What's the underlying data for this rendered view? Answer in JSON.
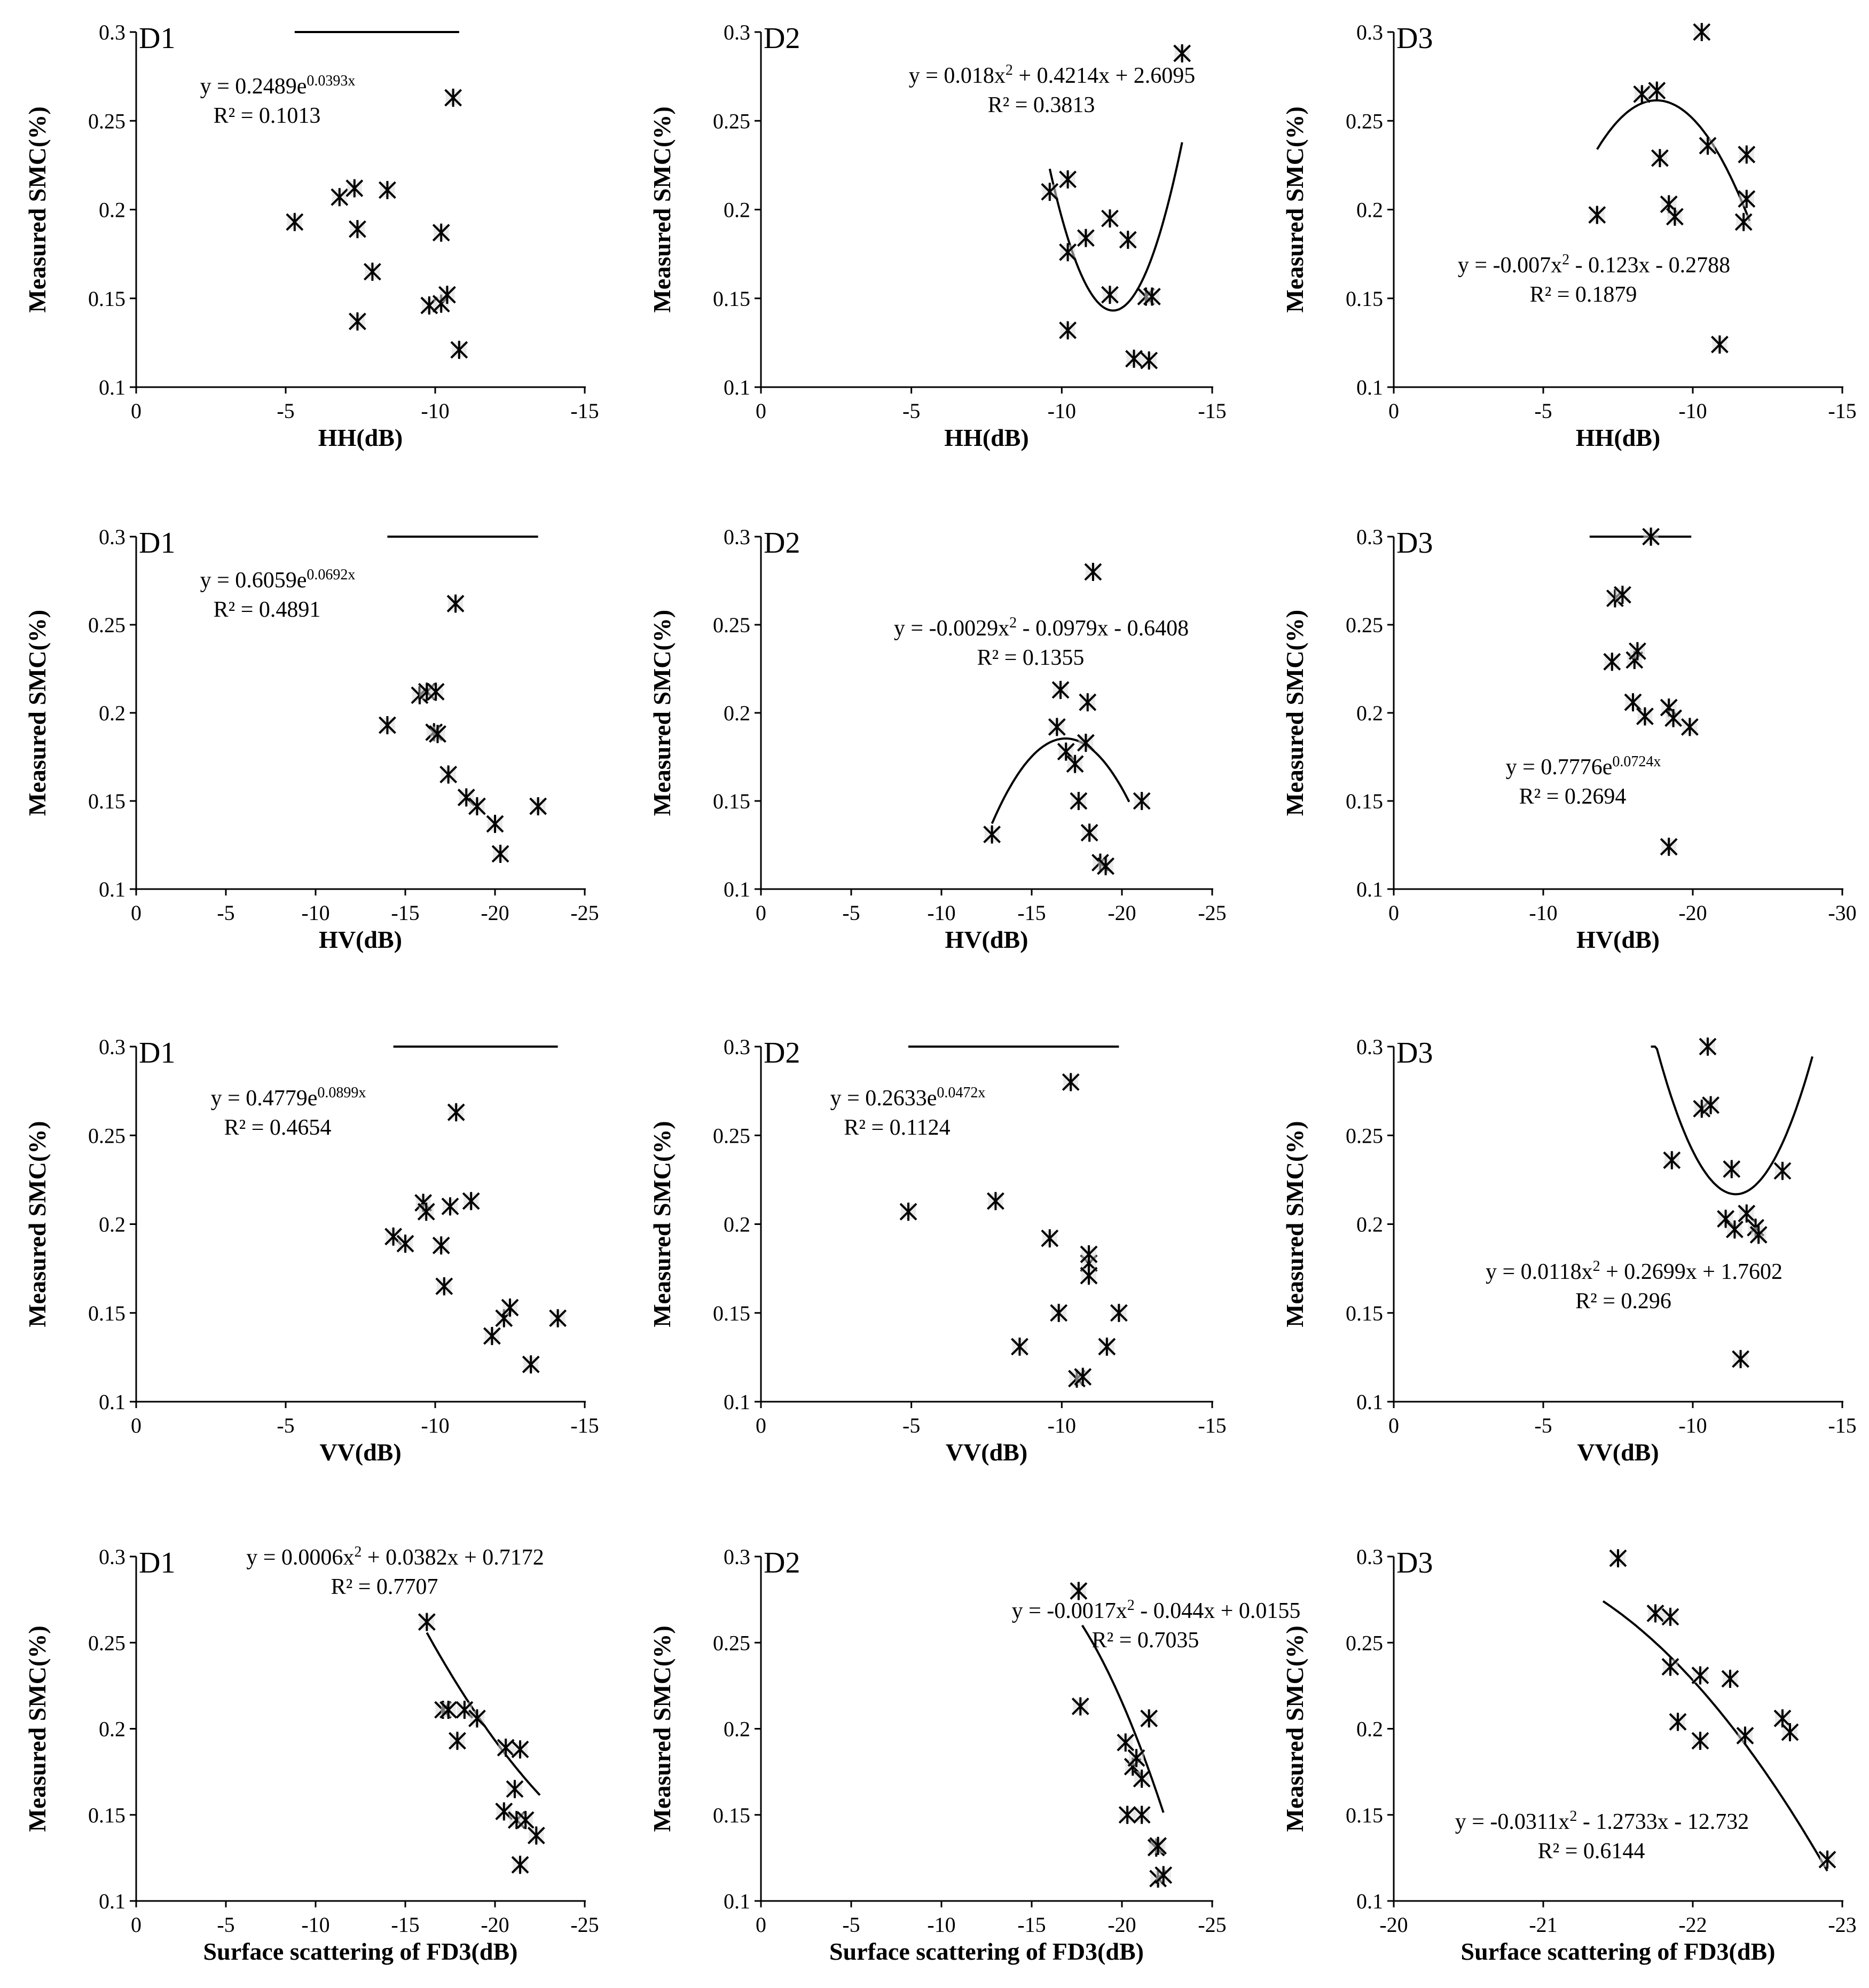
{
  "chart_data": [
    {
      "type": "scatter",
      "title": "D1",
      "xlabel": "HH(dB)",
      "ylabel": "Measured SMC(%)",
      "xlim": [
        0,
        -15
      ],
      "ylim": [
        0.1,
        0.3
      ],
      "xticks": [
        "0",
        "-5",
        "-10",
        "-15"
      ],
      "yticks": [
        "0.1",
        "0.15",
        "0.2",
        "0.25",
        "0.3"
      ],
      "equation": {
        "base": "y = 0.2489e",
        "sup": "0.0393x"
      },
      "r2": "R² = 0.1013",
      "fit": {
        "kind": "exp",
        "a": 0.2489,
        "b": 0.0393,
        "xrange": [
          -5.3,
          -10.8
        ]
      },
      "points": [
        [
          -5.3,
          0.193
        ],
        [
          -6.8,
          0.207
        ],
        [
          -7.3,
          0.212
        ],
        [
          -7.4,
          0.189
        ],
        [
          -7.4,
          0.137
        ],
        [
          -7.9,
          0.165
        ],
        [
          -8.4,
          0.211
        ],
        [
          -9.8,
          0.146
        ],
        [
          -10.2,
          0.187
        ],
        [
          -10.2,
          0.147
        ],
        [
          -10.4,
          0.152
        ],
        [
          -10.6,
          0.263
        ],
        [
          -10.8,
          0.121
        ]
      ]
    },
    {
      "type": "scatter",
      "title": "D2",
      "xlabel": "HH(dB)",
      "ylabel": "Measured SMC(%)",
      "xlim": [
        0,
        -15
      ],
      "ylim": [
        0.1,
        0.3
      ],
      "xticks": [
        "0",
        "-5",
        "-10",
        "-15"
      ],
      "yticks": [
        "0.1",
        "0.15",
        "0.2",
        "0.25",
        "0.3"
      ],
      "equation": {
        "base": "y = 0.018x",
        "sup": "2",
        "rest": " + 0.4214x + 2.6095"
      },
      "r2": "R² = 0.3813",
      "fit": {
        "kind": "poly",
        "c": [
          2.6095,
          0.4214,
          0.018
        ],
        "xrange": [
          -9.6,
          -14.0
        ]
      },
      "points": [
        [
          -9.6,
          0.21
        ],
        [
          -10.2,
          0.217
        ],
        [
          -10.2,
          0.176
        ],
        [
          -10.2,
          0.132
        ],
        [
          -10.8,
          0.184
        ],
        [
          -11.6,
          0.195
        ],
        [
          -11.6,
          0.152
        ],
        [
          -12.2,
          0.183
        ],
        [
          -12.4,
          0.116
        ],
        [
          -12.8,
          0.151
        ],
        [
          -12.9,
          0.115
        ],
        [
          -13.0,
          0.151
        ],
        [
          -14.0,
          0.288
        ]
      ]
    },
    {
      "type": "scatter",
      "title": "D3",
      "xlabel": "HH(dB)",
      "ylabel": "Measured SMC(%)",
      "xlim": [
        0,
        -15
      ],
      "ylim": [
        0.1,
        0.3
      ],
      "xticks": [
        "0",
        "-5",
        "-10",
        "-15"
      ],
      "yticks": [
        "0.1",
        "0.15",
        "0.2",
        "0.25",
        "0.3"
      ],
      "equation": {
        "base": "y = -0.007x",
        "sup": "2",
        "rest": " - 0.123x - 0.2788"
      },
      "r2": "R² = 0.1879",
      "fit": {
        "kind": "poly",
        "c": [
          -0.2788,
          -0.123,
          -0.007
        ],
        "xrange": [
          -6.8,
          -11.9
        ]
      },
      "points": [
        [
          -6.8,
          0.197
        ],
        [
          -8.3,
          0.265
        ],
        [
          -8.8,
          0.267
        ],
        [
          -8.9,
          0.229
        ],
        [
          -9.2,
          0.203
        ],
        [
          -9.4,
          0.196
        ],
        [
          -10.3,
          0.3
        ],
        [
          -10.5,
          0.236
        ],
        [
          -10.9,
          0.124
        ],
        [
          -11.7,
          0.193
        ],
        [
          -11.8,
          0.231
        ],
        [
          -11.8,
          0.206
        ]
      ]
    },
    {
      "type": "scatter",
      "title": "D1",
      "xlabel": "HV(dB)",
      "ylabel": "Measured SMC(%)",
      "xlim": [
        0,
        -25
      ],
      "ylim": [
        0.1,
        0.3
      ],
      "xticks": [
        "0",
        "-5",
        "-10",
        "-15",
        "-20",
        "-25"
      ],
      "yticks": [
        "0.1",
        "0.15",
        "0.2",
        "0.25",
        "0.3"
      ],
      "equation": {
        "base": "y = 0.6059e",
        "sup": "0.0692x"
      },
      "r2": "R² = 0.4891",
      "fit": {
        "kind": "exp",
        "a": 0.6059,
        "b": 0.0692,
        "xrange": [
          -14.0,
          -22.4
        ]
      },
      "points": [
        [
          -14.0,
          0.193
        ],
        [
          -15.8,
          0.21
        ],
        [
          -16.2,
          0.212
        ],
        [
          -16.6,
          0.189
        ],
        [
          -16.7,
          0.212
        ],
        [
          -16.8,
          0.188
        ],
        [
          -17.4,
          0.165
        ],
        [
          -17.8,
          0.262
        ],
        [
          -18.4,
          0.152
        ],
        [
          -19.0,
          0.147
        ],
        [
          -20.0,
          0.137
        ],
        [
          -20.3,
          0.12
        ],
        [
          -22.4,
          0.147
        ]
      ]
    },
    {
      "type": "scatter",
      "title": "D2",
      "xlabel": "HV(dB)",
      "ylabel": "Measured SMC(%)",
      "xlim": [
        0,
        -25
      ],
      "ylim": [
        0.1,
        0.3
      ],
      "xticks": [
        "0",
        "-5",
        "-10",
        "-15",
        "-20",
        "-25"
      ],
      "yticks": [
        "0.1",
        "0.15",
        "0.2",
        "0.25",
        "0.3"
      ],
      "equation": {
        "base": "y = -0.0029x",
        "sup": "2",
        "rest": " - 0.0979x - 0.6408"
      },
      "r2": "R² = 0.1355",
      "fit": {
        "kind": "poly",
        "c": [
          -0.6408,
          -0.0979,
          -0.0029
        ],
        "xrange": [
          -12.8,
          -20.4
        ]
      },
      "points": [
        [
          -12.8,
          0.131
        ],
        [
          -16.4,
          0.192
        ],
        [
          -16.6,
          0.213
        ],
        [
          -16.9,
          0.178
        ],
        [
          -17.4,
          0.171
        ],
        [
          -17.6,
          0.15
        ],
        [
          -18.0,
          0.183
        ],
        [
          -18.1,
          0.206
        ],
        [
          -18.2,
          0.132
        ],
        [
          -18.4,
          0.28
        ],
        [
          -18.8,
          0.115
        ],
        [
          -19.1,
          0.113
        ],
        [
          -21.1,
          0.15
        ]
      ]
    },
    {
      "type": "scatter",
      "title": "D3",
      "xlabel": "HV(dB)",
      "ylabel": "Measured SMC(%)",
      "xlim": [
        0,
        -30
      ],
      "ylim": [
        0.1,
        0.3
      ],
      "xticks": [
        "0",
        "-10",
        "-20",
        "-30"
      ],
      "yticks": [
        "0.1",
        "0.15",
        "0.2",
        "0.25",
        "0.3"
      ],
      "equation": {
        "base": "y = 0.7776e",
        "sup": "0.0724x"
      },
      "r2": "R² = 0.2694",
      "fit": {
        "kind": "exp",
        "a": 0.7776,
        "b": 0.0724,
        "xrange": [
          -13.1,
          -19.9
        ]
      },
      "points": [
        [
          -14.6,
          0.229
        ],
        [
          -14.8,
          0.265
        ],
        [
          -15.3,
          0.267
        ],
        [
          -16.0,
          0.206
        ],
        [
          -16.1,
          0.23
        ],
        [
          -16.3,
          0.235
        ],
        [
          -16.8,
          0.198
        ],
        [
          -17.2,
          0.3
        ],
        [
          -18.4,
          0.203
        ],
        [
          -18.4,
          0.124
        ],
        [
          -18.7,
          0.197
        ],
        [
          -19.8,
          0.192
        ]
      ]
    },
    {
      "type": "scatter",
      "title": "D1",
      "xlabel": "VV(dB)",
      "ylabel": "Measured SMC(%)",
      "xlim": [
        0,
        -15
      ],
      "ylim": [
        0.1,
        0.3
      ],
      "xticks": [
        "0",
        "-5",
        "-10",
        "-15"
      ],
      "yticks": [
        "0.1",
        "0.15",
        "0.2",
        "0.25",
        "0.3"
      ],
      "equation": {
        "base": "y = 0.4779e",
        "sup": "0.0899x"
      },
      "r2": "R² = 0.4654",
      "fit": {
        "kind": "exp",
        "a": 0.4779,
        "b": 0.0899,
        "xrange": [
          -8.6,
          -14.1
        ]
      },
      "points": [
        [
          -8.6,
          0.193
        ],
        [
          -9.0,
          0.189
        ],
        [
          -9.6,
          0.212
        ],
        [
          -9.7,
          0.207
        ],
        [
          -10.2,
          0.188
        ],
        [
          -10.3,
          0.165
        ],
        [
          -10.5,
          0.21
        ],
        [
          -10.7,
          0.263
        ],
        [
          -11.2,
          0.213
        ],
        [
          -11.9,
          0.137
        ],
        [
          -12.3,
          0.147
        ],
        [
          -12.5,
          0.153
        ],
        [
          -13.2,
          0.121
        ],
        [
          -14.1,
          0.147
        ]
      ]
    },
    {
      "type": "scatter",
      "title": "D2",
      "xlabel": "VV(dB)",
      "ylabel": "Measured SMC(%)",
      "xlim": [
        0,
        -15
      ],
      "ylim": [
        0.1,
        0.3
      ],
      "xticks": [
        "0",
        "-5",
        "-10",
        "-15"
      ],
      "yticks": [
        "0.1",
        "0.15",
        "0.2",
        "0.25",
        "0.3"
      ],
      "equation": {
        "base": "y = 0.2633e",
        "sup": "0.0472x"
      },
      "r2": "R² = 0.1124",
      "fit": {
        "kind": "exp",
        "a": 0.2633,
        "b": 0.0472,
        "xrange": [
          -4.9,
          -11.9
        ]
      },
      "points": [
        [
          -4.9,
          0.207
        ],
        [
          -7.8,
          0.213
        ],
        [
          -8.6,
          0.131
        ],
        [
          -9.6,
          0.192
        ],
        [
          -9.9,
          0.15
        ],
        [
          -10.3,
          0.28
        ],
        [
          -10.5,
          0.113
        ],
        [
          -10.7,
          0.114
        ],
        [
          -10.9,
          0.178
        ],
        [
          -10.9,
          0.183
        ],
        [
          -10.9,
          0.171
        ],
        [
          -11.5,
          0.131
        ],
        [
          -11.9,
          0.15
        ]
      ]
    },
    {
      "type": "scatter",
      "title": "D3",
      "xlabel": "VV(dB)",
      "ylabel": "Measured SMC(%)",
      "xlim": [
        0,
        -15
      ],
      "ylim": [
        0.1,
        0.3
      ],
      "xticks": [
        "0",
        "-5",
        "-10",
        "-15"
      ],
      "yticks": [
        "0.1",
        "0.15",
        "0.2",
        "0.25",
        "0.3"
      ],
      "equation": {
        "base": "y = 0.0118x",
        "sup": "2",
        "rest": " + 0.2699x + 1.7602"
      },
      "r2": "R² = 0.296",
      "fit": {
        "kind": "poly",
        "c": [
          1.7602,
          0.2699,
          0.0118
        ],
        "xrange": [
          -8.6,
          -14.0
        ]
      },
      "points": [
        [
          -9.3,
          0.236
        ],
        [
          -10.3,
          0.265
        ],
        [
          -10.5,
          0.3
        ],
        [
          -10.6,
          0.267
        ],
        [
          -11.1,
          0.203
        ],
        [
          -11.3,
          0.231
        ],
        [
          -11.4,
          0.197
        ],
        [
          -11.6,
          0.124
        ],
        [
          -11.8,
          0.206
        ],
        [
          -12.1,
          0.198
        ],
        [
          -12.2,
          0.194
        ],
        [
          -13.0,
          0.23
        ]
      ]
    },
    {
      "type": "scatter",
      "title": "D1",
      "xlabel": "Surface scattering of FD3(dB)",
      "ylabel": "Measured SMC(%)",
      "xlim": [
        0,
        -25
      ],
      "ylim": [
        0.1,
        0.3
      ],
      "xticks": [
        "0",
        "-5",
        "-10",
        "-15",
        "-20",
        "-25"
      ],
      "yticks": [
        "0.1",
        "0.15",
        "0.2",
        "0.25",
        "0.3"
      ],
      "equation": {
        "base": "y = 0.0006x",
        "sup": "2",
        "rest": " + 0.0382x + 0.7172"
      },
      "r2": "R² = 0.7707",
      "fit": {
        "kind": "poly",
        "c": [
          0.7172,
          0.0382,
          0.0006
        ],
        "xrange": [
          -16.2,
          -22.5
        ]
      },
      "points": [
        [
          -16.2,
          0.262
        ],
        [
          -17.1,
          0.211
        ],
        [
          -17.4,
          0.211
        ],
        [
          -17.9,
          0.193
        ],
        [
          -18.3,
          0.211
        ],
        [
          -19.0,
          0.206
        ],
        [
          -20.5,
          0.152
        ],
        [
          -20.6,
          0.189
        ],
        [
          -21.1,
          0.165
        ],
        [
          -21.2,
          0.147
        ],
        [
          -21.4,
          0.188
        ],
        [
          -21.4,
          0.121
        ],
        [
          -21.7,
          0.147
        ],
        [
          -22.3,
          0.138
        ]
      ]
    },
    {
      "type": "scatter",
      "title": "D2",
      "xlabel": "Surface scattering of FD3(dB)",
      "ylabel": "Measured SMC(%)",
      "xlim": [
        0,
        -25
      ],
      "ylim": [
        0.1,
        0.3
      ],
      "xticks": [
        "0",
        "-5",
        "-10",
        "-15",
        "-20",
        "-25"
      ],
      "yticks": [
        "0.1",
        "0.15",
        "0.2",
        "0.25",
        "0.3"
      ],
      "equation": {
        "base": "y = -0.0017x",
        "sup": "2",
        "rest": " - 0.044x + 0.0155"
      },
      "r2": "R² = 0.7035",
      "fit": {
        "kind": "poly",
        "c": [
          0.0155,
          -0.044,
          -0.0017
        ],
        "xrange": [
          -17.8,
          -22.3
        ]
      },
      "points": [
        [
          -17.6,
          0.28
        ],
        [
          -17.7,
          0.213
        ],
        [
          -20.2,
          0.192
        ],
        [
          -20.3,
          0.15
        ],
        [
          -20.6,
          0.178
        ],
        [
          -20.8,
          0.183
        ],
        [
          -21.1,
          0.171
        ],
        [
          -21.1,
          0.15
        ],
        [
          -21.5,
          0.206
        ],
        [
          -21.9,
          0.131
        ],
        [
          -22.0,
          0.132
        ],
        [
          -22.0,
          0.113
        ],
        [
          -22.3,
          0.115
        ]
      ]
    },
    {
      "type": "scatter",
      "title": "D3",
      "xlabel": "Surface scattering of FD3(dB)",
      "ylabel": "Measured SMC(%)",
      "xlim": [
        -20,
        -23
      ],
      "ylim": [
        0.1,
        0.3
      ],
      "xticks": [
        "-20",
        "-21",
        "-22",
        "-23"
      ],
      "yticks": [
        "0.1",
        "0.15",
        "0.2",
        "0.25",
        "0.3"
      ],
      "equation": {
        "base": "y = -0.0311x",
        "sup": "2",
        "rest": " - 1.2733x - 12.732"
      },
      "r2": "R² = 0.6144",
      "fit": {
        "kind": "poly",
        "c": [
          -12.732,
          -1.2733,
          -0.0311
        ],
        "xrange": [
          -21.4,
          -22.9
        ]
      },
      "points": [
        [
          -21.5,
          0.299
        ],
        [
          -21.75,
          0.267
        ],
        [
          -21.85,
          0.265
        ],
        [
          -21.85,
          0.236
        ],
        [
          -21.9,
          0.204
        ],
        [
          -22.05,
          0.231
        ],
        [
          -22.05,
          0.193
        ],
        [
          -22.25,
          0.229
        ],
        [
          -22.35,
          0.196
        ],
        [
          -22.6,
          0.206
        ],
        [
          -22.65,
          0.198
        ],
        [
          -22.9,
          0.124
        ]
      ]
    }
  ]
}
